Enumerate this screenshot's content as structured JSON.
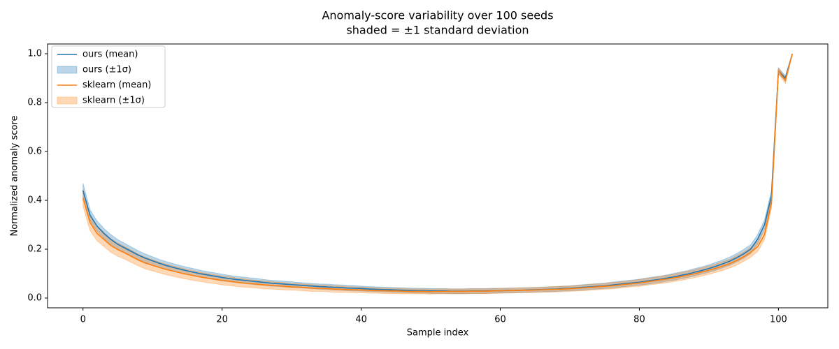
{
  "chart_data": {
    "type": "line_band",
    "title": "Anomaly-score variability over 100 seeds",
    "subtitle": "shaded = ±1 standard deviation",
    "x_label": "Sample index",
    "y_label": "Normalized anomaly score",
    "x": [
      0,
      1,
      2,
      3,
      4,
      5,
      6,
      7,
      8,
      9,
      10,
      11,
      12,
      13,
      14,
      15,
      16,
      17,
      18,
      19,
      20,
      21,
      22,
      23,
      24,
      25,
      26,
      27,
      28,
      29,
      30,
      31,
      32,
      33,
      34,
      35,
      36,
      37,
      38,
      39,
      40,
      41,
      42,
      43,
      44,
      45,
      46,
      47,
      48,
      49,
      50,
      51,
      52,
      53,
      54,
      55,
      56,
      57,
      58,
      59,
      60,
      61,
      62,
      63,
      64,
      65,
      66,
      67,
      68,
      69,
      70,
      71,
      72,
      73,
      74,
      75,
      76,
      77,
      78,
      79,
      80,
      81,
      82,
      83,
      84,
      85,
      86,
      87,
      88,
      89,
      90,
      91,
      92,
      93,
      94,
      95,
      96,
      97,
      98,
      99,
      100,
      101,
      102
    ],
    "series": [
      {
        "name": "ours (mean)",
        "band_name": "ours (±1σ)",
        "color": "#1f77b4",
        "values": [
          0.44,
          0.34,
          0.295,
          0.265,
          0.24,
          0.22,
          0.205,
          0.19,
          0.175,
          0.163,
          0.152,
          0.142,
          0.133,
          0.125,
          0.118,
          0.111,
          0.105,
          0.099,
          0.094,
          0.089,
          0.084,
          0.08,
          0.076,
          0.073,
          0.07,
          0.067,
          0.064,
          0.061,
          0.059,
          0.057,
          0.055,
          0.053,
          0.051,
          0.049,
          0.047,
          0.046,
          0.044,
          0.043,
          0.041,
          0.04,
          0.039,
          0.037,
          0.036,
          0.035,
          0.034,
          0.033,
          0.032,
          0.031,
          0.03,
          0.03,
          0.029,
          0.029,
          0.029,
          0.028,
          0.028,
          0.028,
          0.029,
          0.029,
          0.029,
          0.03,
          0.03,
          0.031,
          0.031,
          0.032,
          0.033,
          0.034,
          0.035,
          0.036,
          0.037,
          0.039,
          0.04,
          0.042,
          0.044,
          0.046,
          0.048,
          0.05,
          0.053,
          0.056,
          0.059,
          0.062,
          0.065,
          0.069,
          0.073,
          0.077,
          0.082,
          0.087,
          0.093,
          0.099,
          0.106,
          0.113,
          0.121,
          0.13,
          0.14,
          0.151,
          0.165,
          0.181,
          0.2,
          0.24,
          0.3,
          0.42,
          0.93,
          0.9,
          1.0
        ],
        "std": [
          0.03,
          0.022,
          0.021,
          0.02,
          0.02,
          0.019,
          0.019,
          0.018,
          0.018,
          0.017,
          0.017,
          0.016,
          0.016,
          0.016,
          0.015,
          0.015,
          0.015,
          0.014,
          0.014,
          0.014,
          0.014,
          0.013,
          0.013,
          0.013,
          0.013,
          0.013,
          0.012,
          0.012,
          0.012,
          0.012,
          0.012,
          0.011,
          0.011,
          0.011,
          0.011,
          0.011,
          0.011,
          0.011,
          0.011,
          0.011,
          0.01,
          0.01,
          0.01,
          0.01,
          0.01,
          0.01,
          0.01,
          0.01,
          0.01,
          0.01,
          0.01,
          0.01,
          0.01,
          0.01,
          0.01,
          0.01,
          0.01,
          0.01,
          0.01,
          0.01,
          0.01,
          0.01,
          0.01,
          0.01,
          0.01,
          0.01,
          0.01,
          0.01,
          0.01,
          0.01,
          0.01,
          0.011,
          0.011,
          0.011,
          0.011,
          0.011,
          0.012,
          0.012,
          0.012,
          0.012,
          0.012,
          0.013,
          0.013,
          0.013,
          0.013,
          0.014,
          0.014,
          0.014,
          0.015,
          0.015,
          0.015,
          0.016,
          0.016,
          0.017,
          0.017,
          0.018,
          0.018,
          0.019,
          0.02,
          0.02,
          0.012,
          0.01,
          0.0
        ]
      },
      {
        "name": "sklearn (mean)",
        "band_name": "sklearn (±1σ)",
        "color": "#ff7f0e",
        "values": [
          0.41,
          0.31,
          0.265,
          0.24,
          0.215,
          0.198,
          0.185,
          0.17,
          0.155,
          0.143,
          0.134,
          0.125,
          0.117,
          0.11,
          0.103,
          0.097,
          0.091,
          0.086,
          0.081,
          0.077,
          0.072,
          0.069,
          0.065,
          0.062,
          0.059,
          0.057,
          0.054,
          0.052,
          0.05,
          0.048,
          0.046,
          0.045,
          0.043,
          0.041,
          0.04,
          0.039,
          0.037,
          0.036,
          0.035,
          0.034,
          0.033,
          0.032,
          0.031,
          0.03,
          0.029,
          0.029,
          0.028,
          0.027,
          0.027,
          0.027,
          0.026,
          0.027,
          0.027,
          0.027,
          0.027,
          0.027,
          0.028,
          0.028,
          0.028,
          0.029,
          0.03,
          0.03,
          0.031,
          0.032,
          0.032,
          0.033,
          0.034,
          0.035,
          0.036,
          0.037,
          0.038,
          0.04,
          0.042,
          0.044,
          0.046,
          0.048,
          0.05,
          0.053,
          0.056,
          0.059,
          0.062,
          0.066,
          0.07,
          0.074,
          0.078,
          0.083,
          0.088,
          0.094,
          0.1,
          0.107,
          0.114,
          0.122,
          0.131,
          0.141,
          0.154,
          0.169,
          0.187,
          0.21,
          0.26,
          0.39,
          0.93,
          0.89,
          1.0
        ],
        "std": [
          0.035,
          0.033,
          0.03,
          0.029,
          0.028,
          0.027,
          0.026,
          0.025,
          0.024,
          0.024,
          0.023,
          0.022,
          0.022,
          0.021,
          0.021,
          0.02,
          0.02,
          0.019,
          0.019,
          0.018,
          0.018,
          0.018,
          0.017,
          0.017,
          0.016,
          0.016,
          0.016,
          0.015,
          0.015,
          0.015,
          0.014,
          0.014,
          0.014,
          0.014,
          0.013,
          0.013,
          0.013,
          0.013,
          0.012,
          0.012,
          0.012,
          0.012,
          0.011,
          0.011,
          0.011,
          0.011,
          0.011,
          0.01,
          0.01,
          0.01,
          0.01,
          0.01,
          0.01,
          0.01,
          0.01,
          0.01,
          0.01,
          0.01,
          0.01,
          0.01,
          0.01,
          0.01,
          0.01,
          0.01,
          0.01,
          0.01,
          0.01,
          0.011,
          0.011,
          0.011,
          0.011,
          0.011,
          0.012,
          0.012,
          0.012,
          0.012,
          0.013,
          0.013,
          0.013,
          0.013,
          0.014,
          0.014,
          0.014,
          0.015,
          0.015,
          0.015,
          0.016,
          0.016,
          0.016,
          0.017,
          0.017,
          0.017,
          0.018,
          0.018,
          0.019,
          0.019,
          0.02,
          0.02,
          0.021,
          0.022,
          0.012,
          0.012,
          0.0
        ]
      }
    ],
    "xlim": [
      -5.1,
      107.1
    ],
    "ylim": [
      -0.04,
      1.04
    ],
    "xticks": [
      0,
      20,
      40,
      60,
      80,
      100
    ],
    "yticks": [
      {
        "value": 0,
        "label": "0.0"
      },
      0.2,
      0.4,
      0.6,
      0.8,
      {
        "value": 1,
        "label": "1.0"
      }
    ],
    "band_opacity": 0.3,
    "legend": "upper left"
  }
}
